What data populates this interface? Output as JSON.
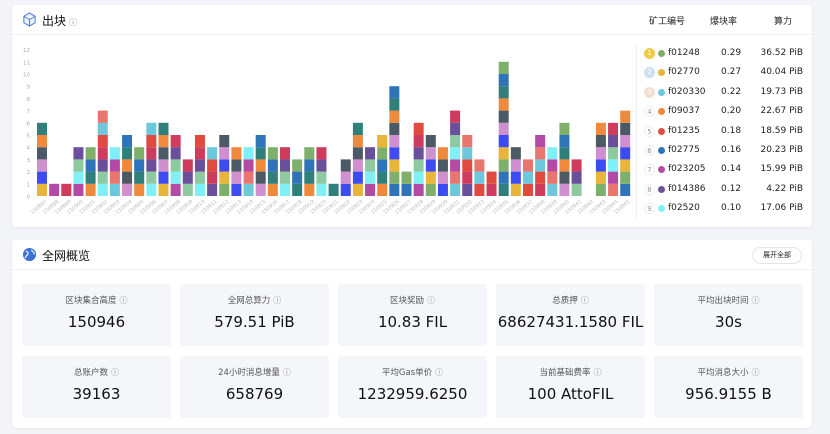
{
  "blocks_panel": {
    "title": "出块",
    "info_icon": "info-circle-icon",
    "columns": [
      "矿工编号",
      "爆块率",
      "算力"
    ],
    "rows": [
      {
        "rank": "1",
        "miner": "f01248",
        "rate": "0.29",
        "power": "36.52 PiB",
        "color": "#7fb06b",
        "rank_color": "#f2c94c"
      },
      {
        "rank": "2",
        "miner": "f02770",
        "rate": "0.27",
        "power": "40.04 PiB",
        "color": "#e8b43a",
        "rank_color": "#cfe0f2"
      },
      {
        "rank": "3",
        "miner": "f020330",
        "rate": "0.22",
        "power": "19.73 PiB",
        "color": "#6ec8dc",
        "rank_color": "#f0e0d0"
      },
      {
        "rank": "4",
        "miner": "f09037",
        "rate": "0.20",
        "power": "22.67 PiB",
        "color": "#ef8a3c"
      },
      {
        "rank": "5",
        "miner": "f01235",
        "rate": "0.18",
        "power": "18.59 PiB",
        "color": "#e04a3f"
      },
      {
        "rank": "6",
        "miner": "f02775",
        "rate": "0.16",
        "power": "20.23 PiB",
        "color": "#2f74b8"
      },
      {
        "rank": "7",
        "miner": "f023205",
        "rate": "0.14",
        "power": "15.99 PiB",
        "color": "#b34aa6"
      },
      {
        "rank": "8",
        "miner": "f014386",
        "rate": "0.12",
        "power": "4.22 PiB",
        "color": "#6a4f9a"
      },
      {
        "rank": "9",
        "miner": "f02520",
        "rate": "0.10",
        "power": "17.06 PiB",
        "color": "#7ff0f5"
      }
    ]
  },
  "chart_data": {
    "type": "bar",
    "stacked": true,
    "ylim": [
      0,
      12
    ],
    "yticks": [
      "0",
      "1",
      "2",
      "3",
      "4",
      "5",
      "6",
      "7",
      "8",
      "9",
      "10",
      "11",
      "12"
    ],
    "categories": [
      "150897",
      "150898",
      "150899",
      "150900",
      "150901",
      "150902",
      "150903",
      "150904",
      "150905",
      "150906",
      "150907",
      "150908",
      "150909",
      "150910",
      "150911",
      "150912",
      "150913",
      "150914",
      "150915",
      "150916",
      "150917",
      "150918",
      "150919",
      "150920",
      "150921",
      "150922",
      "150923",
      "150924",
      "150925",
      "150926",
      "150927",
      "150928",
      "150929",
      "150930",
      "150931",
      "150932",
      "150933",
      "150934",
      "150935",
      "150936",
      "150937",
      "150938",
      "150939",
      "150940",
      "150941",
      "150942",
      "150943",
      "150944",
      "150945"
    ],
    "values": [
      6,
      1,
      1,
      4,
      4,
      7,
      4,
      5,
      4,
      6,
      6,
      5,
      3,
      5,
      4,
      5,
      4,
      4,
      5,
      4,
      4,
      3,
      4,
      4,
      1,
      3,
      6,
      4,
      5,
      9,
      2,
      6,
      5,
      4,
      7,
      5,
      3,
      2,
      11,
      4,
      3,
      5,
      4,
      6,
      3,
      0,
      6,
      6,
      7
    ],
    "segment_colors": [
      "#e8b43a",
      "#e8766e",
      "#2f7f7a",
      "#cf3b5c",
      "#d08fcf",
      "#7ff0f5",
      "#7fb06b",
      "#6ec8dc",
      "#ef8a3c",
      "#6a4f9a",
      "#3d4cf0",
      "#b34aa6",
      "#2f74b8",
      "#e04a3f",
      "#4c5a66",
      "#8fc9a0"
    ]
  },
  "overview": {
    "title": "全网概览",
    "expand_label": "展开全部",
    "stats": [
      {
        "label": "区块集合高度",
        "value": "150946"
      },
      {
        "label": "全网总算力",
        "value": "579.51 PiB"
      },
      {
        "label": "区块奖励",
        "value": "10.83 FIL"
      },
      {
        "label": "总质押",
        "value": "68627431.1580 FIL"
      },
      {
        "label": "平均出块时间",
        "value": "30s"
      },
      {
        "label": "总账户数",
        "value": "39163"
      },
      {
        "label": "24小时消息增量",
        "value": "658769"
      },
      {
        "label": "平均Gas单价",
        "value": "1232959.6250"
      },
      {
        "label": "当前基础费率",
        "value": "100 AttoFIL"
      },
      {
        "label": "平均消息大小",
        "value": "956.9155 B"
      }
    ]
  }
}
